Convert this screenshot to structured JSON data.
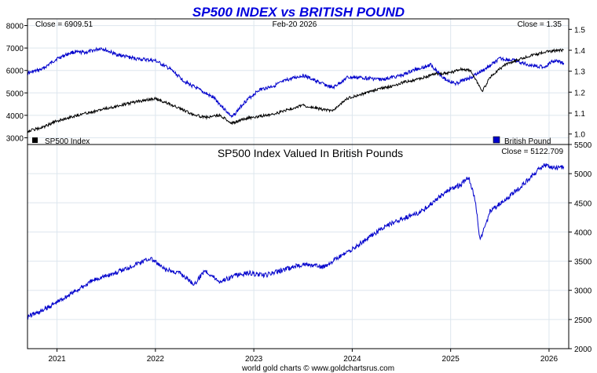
{
  "chart_data": [
    {
      "type": "line",
      "title": "SP500 INDEX vs BRITISH POUND",
      "date_label": "Feb-20  2026",
      "left_close": "Close = 6909.51",
      "right_close": "Close = 1.35",
      "ylim_left": [
        2700,
        8300
      ],
      "ylim_right": [
        0.95,
        1.55
      ],
      "yticks_left": [
        "3000",
        "4000",
        "5000",
        "6000",
        "7000",
        "8000"
      ],
      "yticks_right": [
        "1.0",
        "1.1",
        "1.2",
        "1.3",
        "1.4",
        "1.5"
      ],
      "grid": true,
      "legend": [
        {
          "name": "SP500 Index",
          "color": "#000000",
          "position": "bottom-left"
        },
        {
          "name": "British Pound",
          "color": "#0000cc",
          "position": "bottom-right"
        }
      ],
      "series": [
        {
          "name": "SP500 Index",
          "axis": "left",
          "color": "#000000",
          "x": [
            2020.7,
            2020.85,
            2021.0,
            2021.2,
            2021.4,
            2021.6,
            2021.8,
            2022.0,
            2022.2,
            2022.35,
            2022.5,
            2022.65,
            2022.78,
            2022.9,
            2023.05,
            2023.2,
            2023.35,
            2023.5,
            2023.65,
            2023.8,
            2023.95,
            2024.1,
            2024.25,
            2024.4,
            2024.55,
            2024.7,
            2024.85,
            2025.0,
            2025.1,
            2025.2,
            2025.28,
            2025.32,
            2025.4,
            2025.55,
            2025.7,
            2025.85,
            2026.0,
            2026.1,
            2026.15
          ],
          "y": [
            3300,
            3450,
            3750,
            4000,
            4200,
            4400,
            4600,
            4750,
            4400,
            4100,
            3900,
            4000,
            3650,
            3850,
            3950,
            4050,
            4250,
            4450,
            4300,
            4200,
            4750,
            4950,
            5150,
            5300,
            5500,
            5650,
            5850,
            5900,
            6050,
            6000,
            5400,
            5050,
            5700,
            6250,
            6500,
            6700,
            6850,
            6900,
            6910
          ]
        },
        {
          "name": "British Pound",
          "axis": "right",
          "color": "#0000cc",
          "x": [
            2020.7,
            2020.85,
            2021.0,
            2021.15,
            2021.3,
            2021.45,
            2021.6,
            2021.8,
            2022.0,
            2022.15,
            2022.3,
            2022.45,
            2022.6,
            2022.7,
            2022.78,
            2022.9,
            2023.05,
            2023.2,
            2023.35,
            2023.5,
            2023.65,
            2023.8,
            2023.95,
            2024.1,
            2024.3,
            2024.5,
            2024.65,
            2024.8,
            2024.95,
            2025.05,
            2025.2,
            2025.35,
            2025.5,
            2025.65,
            2025.8,
            2025.95,
            2026.05,
            2026.15
          ],
          "y": [
            1.29,
            1.31,
            1.36,
            1.39,
            1.39,
            1.41,
            1.38,
            1.36,
            1.35,
            1.31,
            1.25,
            1.21,
            1.17,
            1.12,
            1.08,
            1.15,
            1.21,
            1.23,
            1.26,
            1.28,
            1.25,
            1.22,
            1.27,
            1.27,
            1.26,
            1.28,
            1.31,
            1.33,
            1.26,
            1.24,
            1.27,
            1.31,
            1.36,
            1.35,
            1.33,
            1.32,
            1.35,
            1.34
          ]
        }
      ]
    },
    {
      "type": "line",
      "title": "SP500 Index Valued In British Pounds",
      "close_label": "Close = 5122.709",
      "ylim": [
        2000,
        5500
      ],
      "yticks": [
        "2000",
        "2500",
        "3000",
        "3500",
        "4000",
        "4500",
        "5000",
        "5500"
      ],
      "xticks": [
        "2021",
        "2022",
        "2023",
        "2024",
        "2025",
        "2026"
      ],
      "grid": true,
      "series": [
        {
          "color": "#0000cc",
          "x": [
            2020.7,
            2020.85,
            2021.0,
            2021.2,
            2021.4,
            2021.6,
            2021.8,
            2021.95,
            2022.1,
            2022.25,
            2022.4,
            2022.5,
            2022.65,
            2022.8,
            2022.95,
            2023.1,
            2023.3,
            2023.5,
            2023.7,
            2023.85,
            2024.0,
            2024.2,
            2024.4,
            2024.55,
            2024.7,
            2024.85,
            2025.0,
            2025.1,
            2025.18,
            2025.25,
            2025.3,
            2025.4,
            2025.55,
            2025.7,
            2025.85,
            2025.95,
            2026.05,
            2026.15
          ],
          "y": [
            2550,
            2650,
            2800,
            3000,
            3200,
            3300,
            3450,
            3550,
            3350,
            3300,
            3100,
            3350,
            3150,
            3250,
            3300,
            3250,
            3350,
            3450,
            3400,
            3550,
            3700,
            3950,
            4150,
            4250,
            4350,
            4550,
            4750,
            4800,
            4950,
            4550,
            3850,
            4350,
            4550,
            4750,
            5000,
            5150,
            5100,
            5120
          ]
        }
      ]
    }
  ],
  "footer": "world gold charts © www.goldchartsrus.com"
}
